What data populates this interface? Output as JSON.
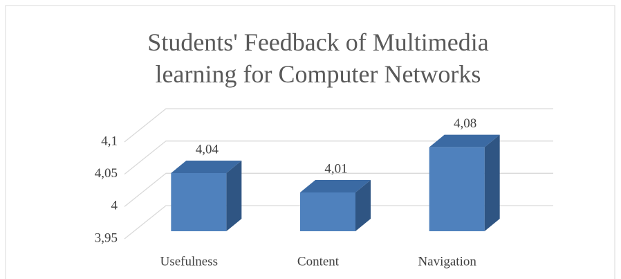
{
  "chart_data": {
    "type": "bar3d",
    "title": "Students' Feedback of  Multimedia learning for Computer Networks",
    "categories": [
      "Usefulness",
      "Content",
      "Navigation"
    ],
    "values": [
      4.04,
      4.01,
      4.08
    ],
    "value_labels": [
      "4,04",
      "4,01",
      "4,08"
    ],
    "color": "#4f81bd",
    "ylim": [
      3.95,
      4.1
    ],
    "yticks": [
      {
        "value": 3.95,
        "label": "3,95"
      },
      4,
      {
        "value": 4.05,
        "label": "4,05"
      },
      {
        "value": 4.1,
        "label": "4,1"
      }
    ],
    "grid": true
  }
}
